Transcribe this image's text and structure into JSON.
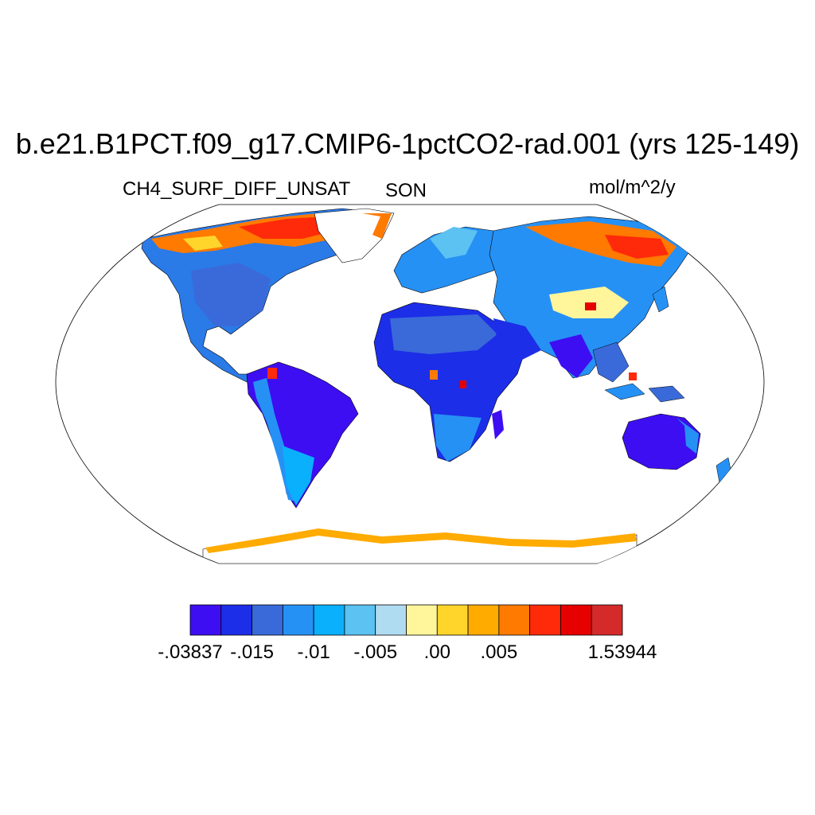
{
  "title": "b.e21.B1PCT.f09_g17.CMIP6-1pctCO2-rad.001 (yrs 125-149)",
  "left_label": "CH4_SURF_DIFF_UNSAT",
  "center_label": "SON",
  "right_label": "mol/m^2/y",
  "colorbar": {
    "colors": [
      "#3d0ef2",
      "#1c2ee8",
      "#3a6ad9",
      "#2691f5",
      "#0ab0fc",
      "#5cc2f2",
      "#b0dcf2",
      "#fff59a",
      "#ffd52c",
      "#ffab00",
      "#ff7a00",
      "#ff2a0a",
      "#e60000",
      "#d42a2a"
    ],
    "tick_labels": [
      {
        "text": "-.03837",
        "boundary": 0
      },
      {
        "text": "-.015",
        "boundary": 2
      },
      {
        "text": "-.01",
        "boundary": 4
      },
      {
        "text": "-.005",
        "boundary": 6
      },
      {
        "text": ".00",
        "boundary": 8
      },
      {
        "text": ".005",
        "boundary": 10
      },
      {
        "text": "1.53944",
        "boundary": 14
      }
    ]
  },
  "map": {
    "projection": "Robinson",
    "ocean_color": "#ffffff",
    "coastline_color": "#000000"
  }
}
